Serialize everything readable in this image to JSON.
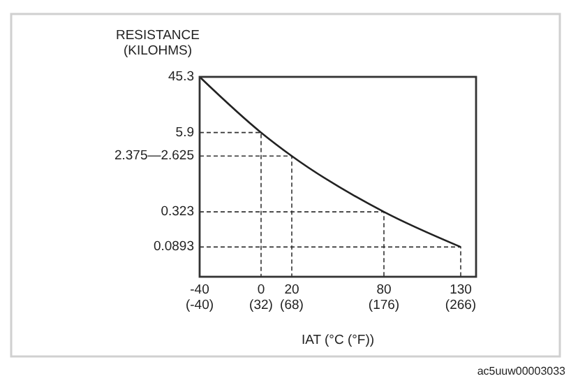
{
  "chart_data": {
    "type": "line",
    "ylabel": "RESISTANCE\n(KILOHMS)",
    "xlabel": "IAT (°C (°F))",
    "x": [
      -40,
      0,
      20,
      80,
      130
    ],
    "series": [
      {
        "color": "#222222",
        "values": [
          45.3,
          5.9,
          2.5,
          0.323,
          0.0893
        ]
      },
      {
        "color": "#333333",
        "line_style": "dashed",
        "x": [
          -40,
          0,
          0
        ],
        "values": [
          5.9,
          5.9,
          0.03
        ]
      },
      {
        "color": "#333333",
        "line_style": "dashed",
        "x": [
          -40,
          20,
          20
        ],
        "values": [
          2.5,
          2.5,
          0.03
        ]
      },
      {
        "color": "#333333",
        "line_style": "dashed",
        "x": [
          -40,
          80,
          80
        ],
        "values": [
          0.323,
          0.323,
          0.03
        ]
      },
      {
        "color": "#333333",
        "line_style": "dashed",
        "x": [
          -40,
          130,
          130
        ],
        "values": [
          0.0893,
          0.0893,
          0.03
        ]
      }
    ],
    "xlim": [
      -40,
      140
    ],
    "xticks": [
      -40,
      0,
      20,
      80,
      130
    ],
    "x2lim": [
      -40,
      284
    ],
    "x2ticks": [
      {
        "value": -40,
        "label": "(-40)"
      },
      {
        "value": 32,
        "label": "(32)"
      },
      {
        "value": 68,
        "label": "(68)"
      },
      {
        "value": 176,
        "label": "(176)"
      },
      {
        "value": 266,
        "label": "(266)"
      }
    ],
    "log": "y",
    "ylim": [
      0.03,
      45.3
    ],
    "yticks": [
      45.3,
      5.9,
      {
        "value": 2.5,
        "label": "2.375—2.625"
      },
      0.323,
      0.0893
    ],
    "marker": "none",
    "line_style": "solid",
    "annotations": [
      "ac5uuw00003033"
    ]
  }
}
